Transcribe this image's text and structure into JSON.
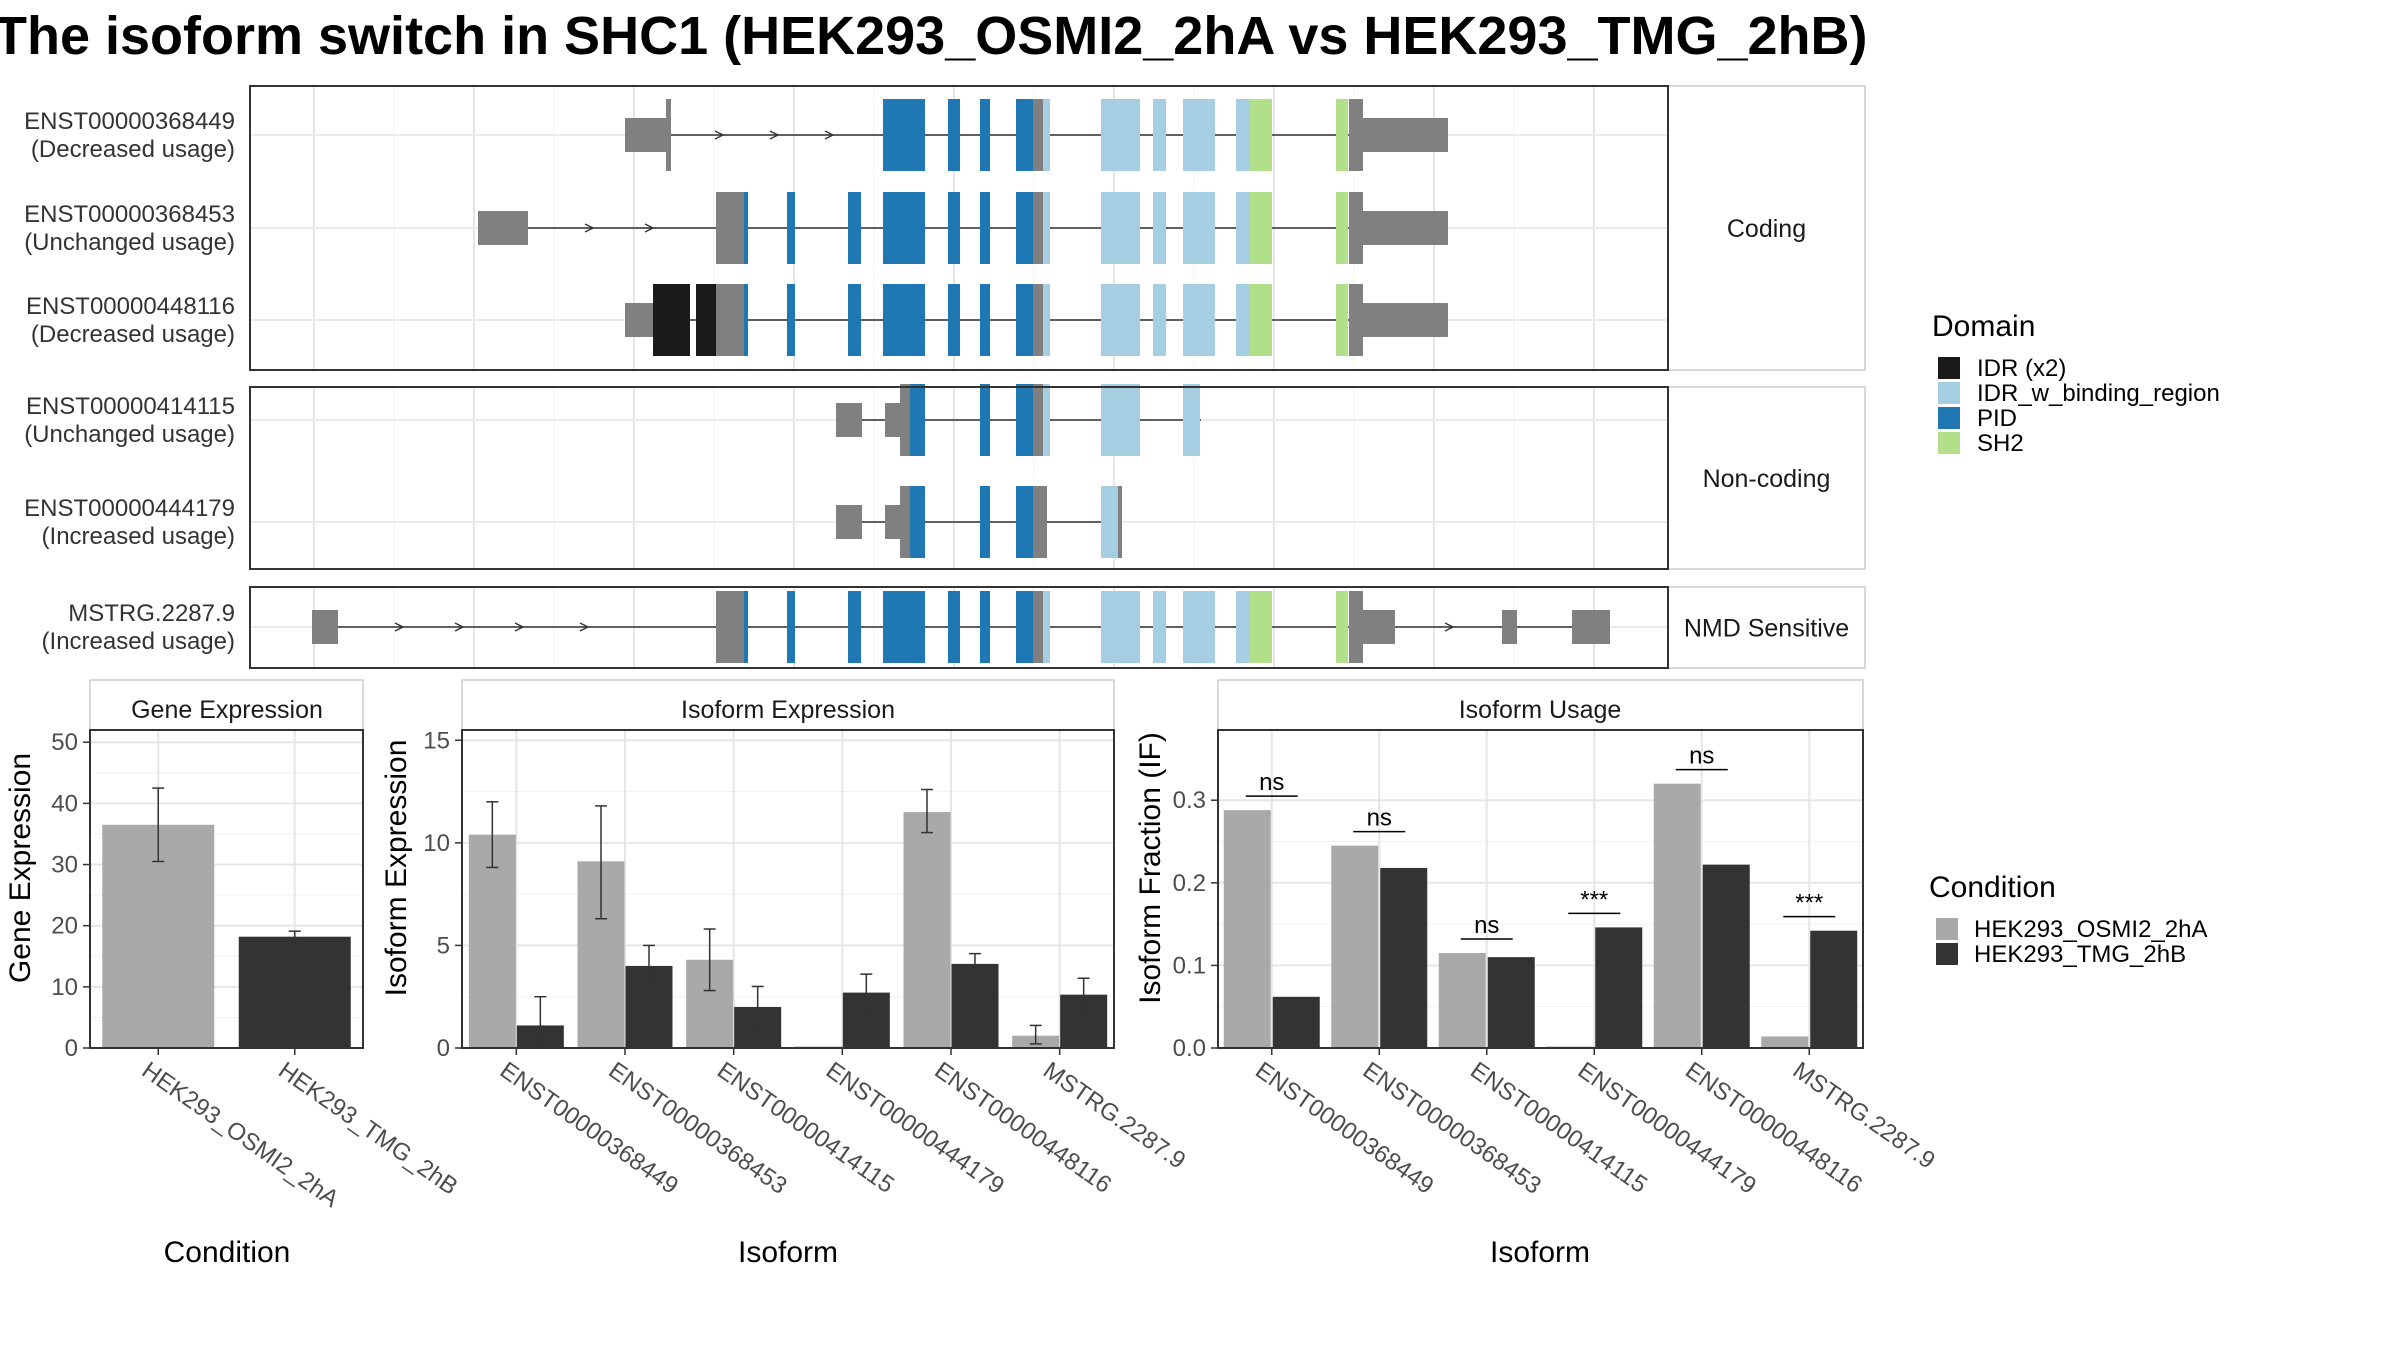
{
  "title": "The isoform switch in SHC1 (HEK293_OSMI2_2hA vs HEK293_TMG_2hB)",
  "colors": {
    "idr": "#1a1a1a",
    "idr_binding": "#a6cee3",
    "pid": "#1f78b4",
    "sh2": "#b2df8a",
    "utr": "#808080",
    "cond1": "#a9a9a9",
    "cond2": "#333333"
  },
  "isoform_structure": {
    "groups": [
      {
        "label": "Coding",
        "isoforms": [
          {
            "id": "ENST00000368449",
            "usage": "(Decreased usage)"
          },
          {
            "id": "ENST00000368453",
            "usage": "(Unchanged usage)"
          },
          {
            "id": "ENST00000448116",
            "usage": "(Decreased usage)"
          }
        ]
      },
      {
        "label": "Non-coding",
        "isoforms": [
          {
            "id": "ENST00000414115",
            "usage": "(Unchanged usage)"
          },
          {
            "id": "ENST00000444179",
            "usage": "(Increased usage)"
          }
        ]
      },
      {
        "label": "NMD Sensitive",
        "isoforms": [
          {
            "id": "MSTRG.2287.9",
            "usage": "(Increased usage)"
          }
        ]
      }
    ]
  },
  "domain_legend": {
    "title": "Domain",
    "items": [
      {
        "label": "IDR (x2)",
        "color": "#1a1a1a"
      },
      {
        "label": "IDR_w_binding_region",
        "color": "#a6cee3"
      },
      {
        "label": "PID",
        "color": "#1f78b4"
      },
      {
        "label": "SH2",
        "color": "#b2df8a"
      }
    ]
  },
  "condition_legend": {
    "title": "Condition",
    "items": [
      {
        "label": "HEK293_OSMI2_2hA",
        "color": "#a9a9a9"
      },
      {
        "label": "HEK293_TMG_2hB",
        "color": "#333333"
      }
    ]
  },
  "chart_data": [
    {
      "type": "bar",
      "panel_title": "Gene Expression",
      "xlabel": "Condition",
      "ylabel": "Gene Expression",
      "categories": [
        "HEK293_OSMI2_2hA",
        "HEK293_TMG_2hB"
      ],
      "values": [
        36.5,
        18.2
      ],
      "errors": [
        [
          30.5,
          42.5
        ],
        [
          17.3,
          19.1
        ]
      ],
      "ylim": [
        0,
        52
      ],
      "yticks": [
        0,
        10,
        20,
        30,
        40,
        50
      ]
    },
    {
      "type": "bar",
      "panel_title": "Isoform Expression",
      "xlabel": "Isoform",
      "ylabel": "Isoform Expression",
      "categories": [
        "ENST00000368449",
        "ENST00000368453",
        "ENST00000414115",
        "ENST00000444179",
        "ENST00000448116",
        "MSTRG.2287.9"
      ],
      "series": [
        {
          "name": "HEK293_OSMI2_2hA",
          "values": [
            10.4,
            9.1,
            4.3,
            0.0,
            11.5,
            0.6
          ],
          "errors": [
            [
              8.8,
              12.0
            ],
            [
              6.3,
              11.8
            ],
            [
              2.8,
              5.8
            ],
            [
              0.0,
              0.0
            ],
            [
              10.5,
              12.6
            ],
            [
              0.2,
              1.1
            ]
          ]
        },
        {
          "name": "HEK293_TMG_2hB",
          "values": [
            1.1,
            4.0,
            2.0,
            2.7,
            4.1,
            2.6
          ],
          "errors": [
            [
              0.0,
              2.5
            ],
            [
              3.0,
              5.0
            ],
            [
              1.1,
              3.0
            ],
            [
              1.8,
              3.6
            ],
            [
              3.6,
              4.6
            ],
            [
              1.8,
              3.4
            ]
          ]
        }
      ],
      "ylim": [
        0,
        15.5
      ],
      "yticks": [
        0,
        5,
        10,
        15
      ]
    },
    {
      "type": "bar",
      "panel_title": "Isoform Usage",
      "xlabel": "Isoform",
      "ylabel": "Isoform Fraction (IF)",
      "categories": [
        "ENST00000368449",
        "ENST00000368453",
        "ENST00000414115",
        "ENST00000444179",
        "ENST00000448116",
        "MSTRG.2287.9"
      ],
      "series": [
        {
          "name": "HEK293_OSMI2_2hA",
          "values": [
            0.288,
            0.245,
            0.115,
            0.0,
            0.32,
            0.014
          ]
        },
        {
          "name": "HEK293_TMG_2hB",
          "values": [
            0.062,
            0.218,
            0.11,
            0.146,
            0.222,
            0.142
          ]
        }
      ],
      "significance": [
        {
          "label": "ns",
          "y": 0.305
        },
        {
          "label": "ns",
          "y": 0.262
        },
        {
          "label": "ns",
          "y": 0.132
        },
        {
          "label": "***",
          "y": 0.163
        },
        {
          "label": "ns",
          "y": 0.337
        },
        {
          "label": "***",
          "y": 0.159
        }
      ],
      "ylim": [
        0,
        0.385
      ],
      "yticks": [
        0.0,
        0.1,
        0.2,
        0.3
      ],
      "ytick_labels": [
        "0.0",
        "0.1",
        "0.2",
        "0.3"
      ]
    }
  ]
}
